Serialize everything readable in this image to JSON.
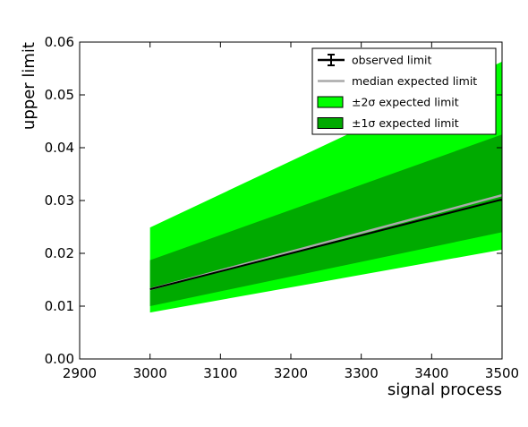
{
  "chart_data": {
    "type": "area",
    "title": "",
    "xlabel": "signal process",
    "ylabel": "upper limit",
    "xlim": [
      2900,
      3500
    ],
    "ylim": [
      0.0,
      0.06
    ],
    "xticks": [
      2900,
      3000,
      3100,
      3200,
      3300,
      3400,
      3500
    ],
    "xtick_labels": [
      "2900",
      "3000",
      "3100",
      "3200",
      "3300",
      "3400",
      "3500"
    ],
    "yticks": [
      0.0,
      0.01,
      0.02,
      0.03,
      0.04,
      0.05,
      0.06
    ],
    "ytick_labels": [
      "0.00",
      "0.01",
      "0.02",
      "0.03",
      "0.04",
      "0.05",
      "0.06"
    ],
    "grid": false,
    "legend_position": "top-right",
    "x": [
      3000,
      3500
    ],
    "series": [
      {
        "name": "observed limit",
        "kind": "line",
        "color": "#000000",
        "values": [
          0.0132,
          0.0302
        ]
      },
      {
        "name": "median expected limit",
        "kind": "line",
        "color": "#aaaaaa",
        "values": [
          0.0132,
          0.031
        ]
      },
      {
        "name": "±2σ expected limit",
        "kind": "band",
        "color": "#00ff00",
        "lower": [
          0.0088,
          0.0207
        ],
        "upper": [
          0.0249,
          0.0563
        ]
      },
      {
        "name": "±1σ expected limit",
        "kind": "band",
        "color": "#00aa00",
        "lower": [
          0.01,
          0.024
        ],
        "upper": [
          0.0187,
          0.0425
        ]
      }
    ]
  }
}
